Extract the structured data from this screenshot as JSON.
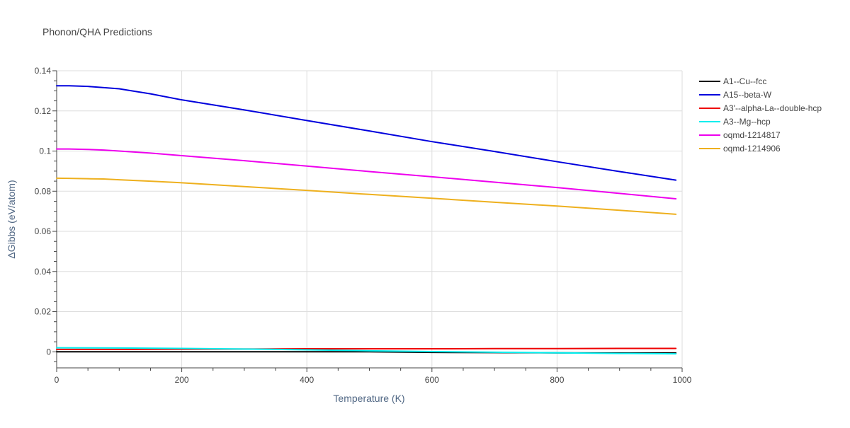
{
  "chart_data": {
    "type": "line",
    "title": "Phonon/QHA Predictions",
    "xlabel": "Temperature (K)",
    "ylabel": "ΔGibbs (eV/atom)",
    "xlim": [
      0,
      1000
    ],
    "ylim": [
      -0.008,
      0.14
    ],
    "xticks": [
      0,
      200,
      400,
      600,
      800,
      1000
    ],
    "xtick_labels": [
      "0",
      "200",
      "400",
      "600",
      "800",
      "1000"
    ],
    "yticks": [
      0,
      0.02,
      0.04,
      0.06,
      0.08,
      0.1,
      0.12,
      0.14
    ],
    "ytick_labels": [
      "0",
      "0.02",
      "0.04",
      "0.06",
      "0.08",
      "0.1",
      "0.12",
      "0.14"
    ],
    "grid": true,
    "legend_position": "right",
    "series": [
      {
        "name": "A1--Cu--fcc",
        "color": "#000000",
        "x": [
          0,
          100,
          200,
          300,
          400,
          500,
          600,
          700,
          800,
          900,
          990
        ],
        "y": [
          0.0,
          0.0,
          0.0,
          0.0,
          0.0,
          0.0,
          -0.0003,
          -0.0004,
          -0.0005,
          -0.0006,
          -0.0006
        ]
      },
      {
        "name": "A15--beta-W",
        "color": "#0000dd",
        "x": [
          0,
          20,
          50,
          100,
          150,
          200,
          300,
          400,
          500,
          600,
          700,
          800,
          900,
          990
        ],
        "y": [
          0.1325,
          0.1325,
          0.1322,
          0.131,
          0.1285,
          0.1255,
          0.1205,
          0.1152,
          0.11,
          0.1047,
          0.0998,
          0.0947,
          0.0898,
          0.0855
        ]
      },
      {
        "name": "A3'--alpha-La--double-hcp",
        "color": "#ee0000",
        "x": [
          0,
          100,
          200,
          300,
          400,
          500,
          600,
          700,
          800,
          900,
          990
        ],
        "y": [
          0.0012,
          0.0012,
          0.0013,
          0.0014,
          0.0015,
          0.0015,
          0.0015,
          0.0016,
          0.0016,
          0.0017,
          0.0017
        ]
      },
      {
        "name": "A3--Mg--hcp",
        "color": "#00eeee",
        "x": [
          0,
          100,
          200,
          300,
          400,
          500,
          600,
          700,
          800,
          900,
          990
        ],
        "y": [
          0.002,
          0.0019,
          0.0017,
          0.0014,
          0.001,
          0.0005,
          0.0001,
          -0.0002,
          -0.0005,
          -0.0008,
          -0.001
        ]
      },
      {
        "name": "oqmd-1214817",
        "color": "#ee00ee",
        "x": [
          0,
          20,
          50,
          75,
          100,
          150,
          200,
          300,
          400,
          500,
          600,
          700,
          800,
          900,
          990
        ],
        "y": [
          0.101,
          0.101,
          0.1008,
          0.1005,
          0.1,
          0.099,
          0.0977,
          0.0952,
          0.0925,
          0.0898,
          0.0872,
          0.0845,
          0.0818,
          0.0789,
          0.0762
        ]
      },
      {
        "name": "oqmd-1214906",
        "color": "#eeb01e",
        "x": [
          0,
          20,
          50,
          75,
          100,
          150,
          200,
          300,
          400,
          500,
          600,
          700,
          800,
          900,
          990
        ],
        "y": [
          0.0865,
          0.0864,
          0.0862,
          0.0861,
          0.0857,
          0.085,
          0.0842,
          0.0823,
          0.0804,
          0.0784,
          0.0765,
          0.0745,
          0.0726,
          0.0705,
          0.0685
        ]
      }
    ]
  }
}
